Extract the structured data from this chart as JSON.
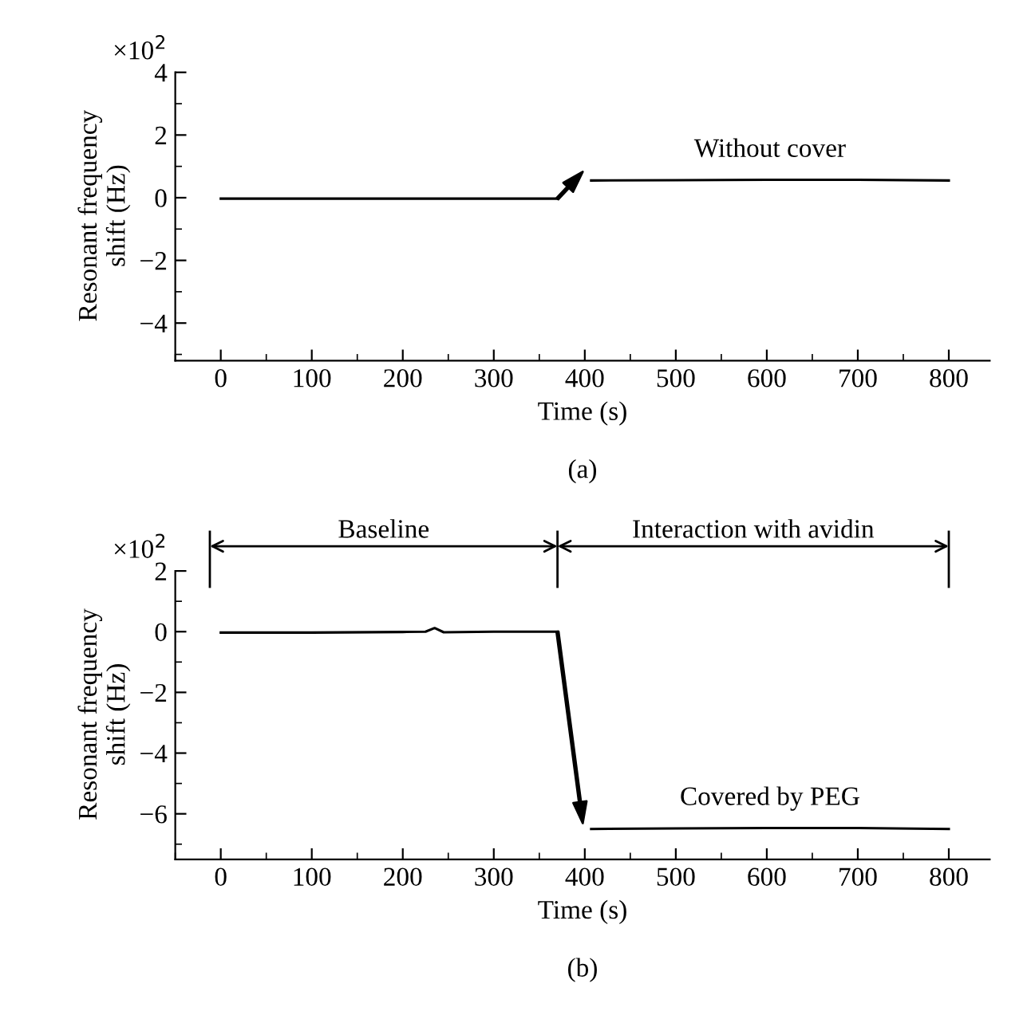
{
  "chart_data": [
    {
      "type": "line",
      "title": "(a)",
      "xlabel": "Time (s)",
      "ylabel": "Resonant frequency\nshift (Hz)",
      "annotations": [
        "×10$^{2}$",
        "Without cover"
      ],
      "series": [
        {
          "color": "#000000",
          "x": [
            0,
            100,
            200,
            300,
            370
          ],
          "values": [
            -0.03,
            -0.03,
            -0.03,
            -0.03,
            -0.03
          ]
        },
        {
          "color": "#000000",
          "x": [
            407,
            500,
            600,
            700,
            800
          ],
          "values": [
            0.55,
            0.56,
            0.57,
            0.57,
            0.55
          ]
        }
      ],
      "xlim": [
        -50,
        845
      ],
      "ylim": [
        -5.2,
        4.05
      ],
      "xticks": [
        0,
        100,
        200,
        300,
        400,
        500,
        600,
        700,
        800
      ],
      "yticks": [
        -4,
        -2,
        0,
        2,
        4
      ],
      "grid": false,
      "legend": false,
      "marker": "none",
      "line_style": "solid"
    },
    {
      "type": "line",
      "title": "(b)",
      "xlabel": "Time (s)",
      "ylabel": "Resonant frequency\nshift (Hz)",
      "annotations": [
        "×10$^{2}$",
        "Baseline",
        "Interaction with avidin",
        "Covered by PEG"
      ],
      "series": [
        {
          "color": "#000000",
          "x": [
            0,
            100,
            200,
            225,
            235,
            245,
            300,
            370
          ],
          "values": [
            -0.03,
            -0.03,
            -0.01,
            0.0,
            0.12,
            -0.02,
            0.0,
            0.0
          ]
        },
        {
          "color": "#000000",
          "x": [
            407,
            500,
            600,
            700,
            800
          ],
          "values": [
            -6.5,
            -6.48,
            -6.47,
            -6.47,
            -6.5
          ]
        }
      ],
      "xlim": [
        -50,
        845
      ],
      "ylim": [
        -7.5,
        2.05
      ],
      "xticks": [
        0,
        100,
        200,
        300,
        400,
        500,
        600,
        700,
        800
      ],
      "yticks": [
        -6,
        -4,
        -2,
        0,
        2
      ],
      "grid": false,
      "legend": false,
      "marker": "none",
      "line_style": "solid"
    }
  ]
}
